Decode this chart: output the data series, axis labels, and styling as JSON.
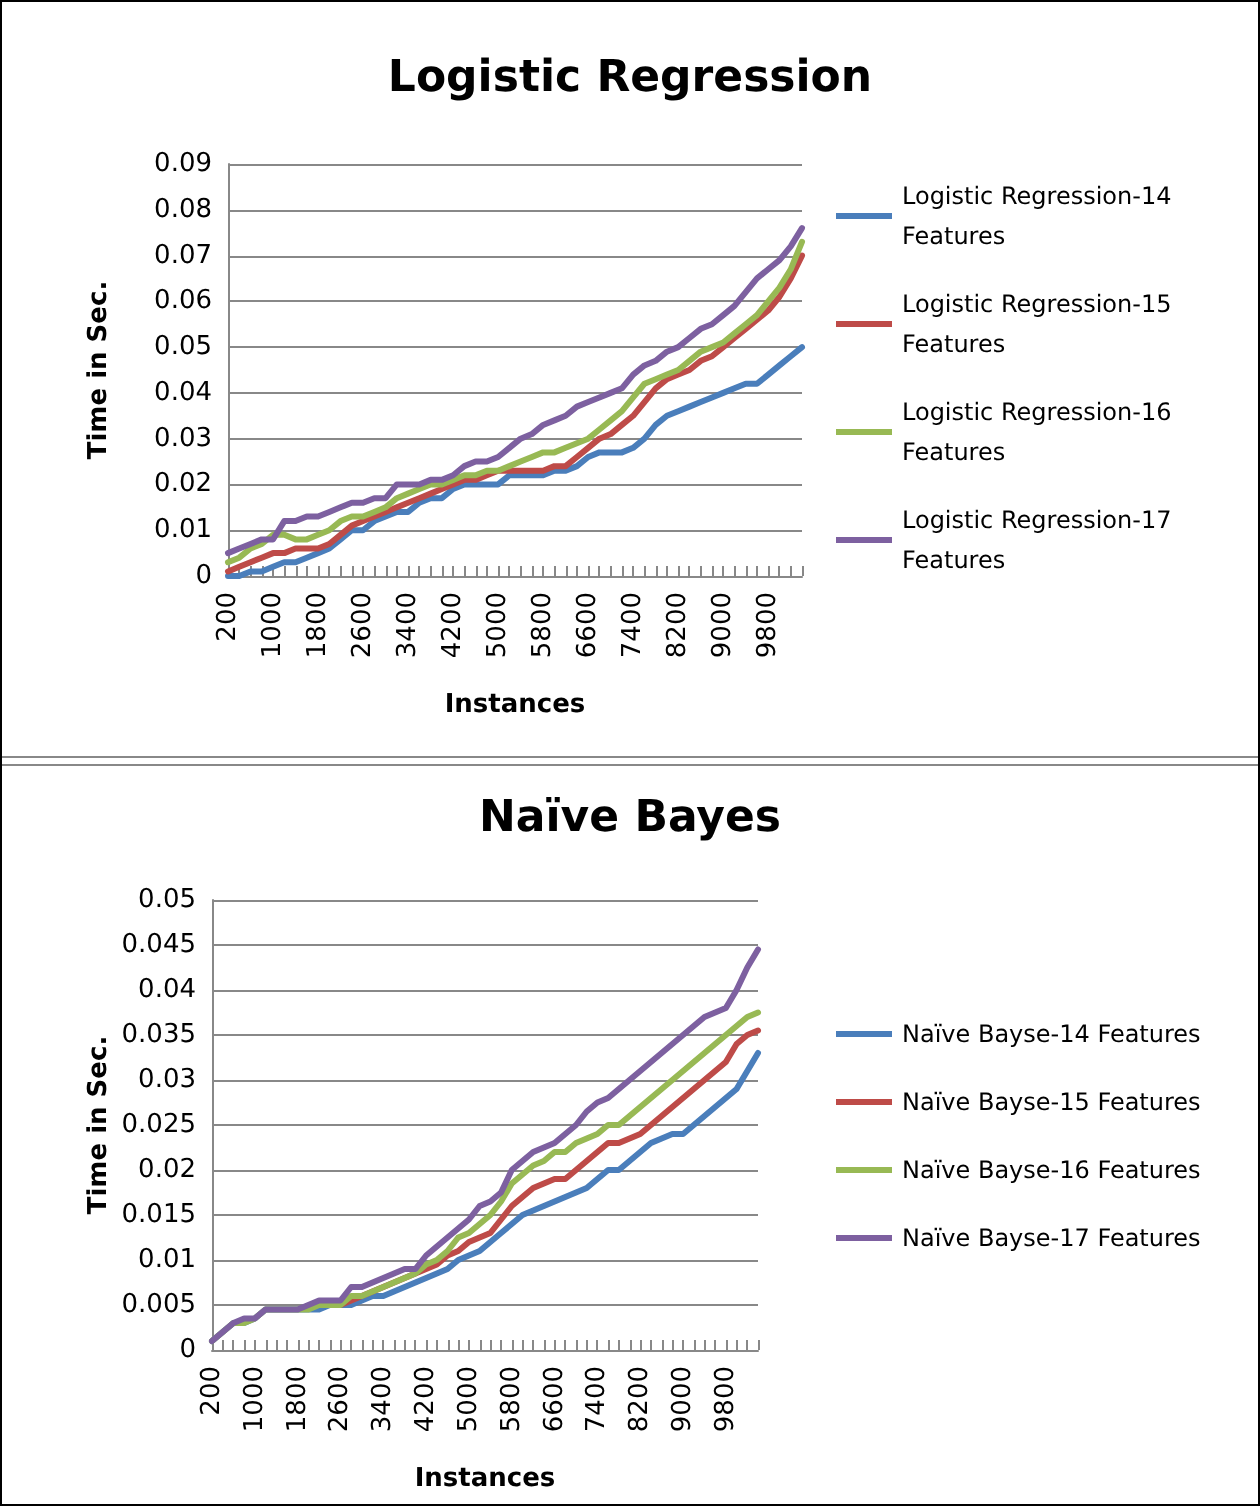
{
  "chart_data": [
    {
      "type": "line",
      "title": "Logistic Regression",
      "xlabel": "Instances",
      "ylabel": "Time in Sec.",
      "categories": [
        "200",
        null,
        null,
        null,
        "1000",
        null,
        null,
        null,
        "1800",
        null,
        null,
        null,
        "2600",
        null,
        null,
        null,
        "3400",
        null,
        null,
        null,
        "4200",
        null,
        null,
        null,
        "5000",
        null,
        null,
        null,
        "5800",
        null,
        null,
        null,
        "6600",
        null,
        null,
        null,
        "7400",
        null,
        null,
        null,
        "8200",
        null,
        null,
        null,
        "9000",
        null,
        null,
        null,
        "9800",
        null,
        null,
        null
      ],
      "series": [
        {
          "name": "Logistic Regression-14 Features",
          "color": "#4a7ebb",
          "values": [
            0,
            0,
            0.001,
            0.001,
            0.002,
            0.003,
            0.003,
            0.004,
            0.005,
            0.006,
            0.008,
            0.01,
            0.01,
            0.012,
            0.013,
            0.014,
            0.014,
            0.016,
            0.017,
            0.017,
            0.019,
            0.02,
            0.02,
            0.02,
            0.02,
            0.022,
            0.022,
            0.022,
            0.022,
            0.023,
            0.023,
            0.024,
            0.026,
            0.027,
            0.027,
            0.027,
            0.028,
            0.03,
            0.033,
            0.035,
            0.036,
            0.037,
            0.038,
            0.039,
            0.04,
            0.041,
            0.042,
            0.042,
            0.044,
            0.046,
            0.048,
            0.05
          ]
        },
        {
          "name": "Logistic Regression-15 Features",
          "color": "#be4b48",
          "values": [
            0.001,
            0.002,
            0.003,
            0.004,
            0.005,
            0.005,
            0.006,
            0.006,
            0.006,
            0.007,
            0.009,
            0.011,
            0.012,
            0.013,
            0.014,
            0.015,
            0.016,
            0.017,
            0.018,
            0.019,
            0.02,
            0.021,
            0.021,
            0.022,
            0.023,
            0.023,
            0.023,
            0.023,
            0.023,
            0.024,
            0.024,
            0.026,
            0.028,
            0.03,
            0.031,
            0.033,
            0.035,
            0.038,
            0.041,
            0.043,
            0.044,
            0.045,
            0.047,
            0.048,
            0.05,
            0.052,
            0.054,
            0.056,
            0.058,
            0.061,
            0.065,
            0.07
          ]
        },
        {
          "name": "Logistic Regression-16 Features",
          "color": "#98b954",
          "values": [
            0.003,
            0.004,
            0.006,
            0.007,
            0.009,
            0.009,
            0.008,
            0.008,
            0.009,
            0.01,
            0.012,
            0.013,
            0.013,
            0.014,
            0.015,
            0.017,
            0.018,
            0.019,
            0.02,
            0.02,
            0.021,
            0.022,
            0.022,
            0.023,
            0.023,
            0.024,
            0.025,
            0.026,
            0.027,
            0.027,
            0.028,
            0.029,
            0.03,
            0.032,
            0.034,
            0.036,
            0.039,
            0.042,
            0.043,
            0.044,
            0.045,
            0.047,
            0.049,
            0.05,
            0.051,
            0.053,
            0.055,
            0.057,
            0.06,
            0.063,
            0.067,
            0.073
          ]
        },
        {
          "name": "Logistic Regression-17 Features",
          "color": "#7d60a0",
          "values": [
            0.005,
            0.006,
            0.007,
            0.008,
            0.008,
            0.012,
            0.012,
            0.013,
            0.013,
            0.014,
            0.015,
            0.016,
            0.016,
            0.017,
            0.017,
            0.02,
            0.02,
            0.02,
            0.021,
            0.021,
            0.022,
            0.024,
            0.025,
            0.025,
            0.026,
            0.028,
            0.03,
            0.031,
            0.033,
            0.034,
            0.035,
            0.037,
            0.038,
            0.039,
            0.04,
            0.041,
            0.044,
            0.046,
            0.047,
            0.049,
            0.05,
            0.052,
            0.054,
            0.055,
            0.057,
            0.059,
            0.062,
            0.065,
            0.067,
            0.069,
            0.072,
            0.076
          ]
        }
      ],
      "ylim": [
        0,
        0.09
      ],
      "yticks": [
        0,
        0.01,
        0.02,
        0.03,
        0.04,
        0.05,
        0.06,
        0.07,
        0.08,
        0.09
      ],
      "grid": "y",
      "legend": "right",
      "marker": "none"
    },
    {
      "type": "line",
      "title": "Naïve Bayes",
      "xlabel": "Instances",
      "ylabel": "Time in Sec.",
      "categories": [
        "200",
        null,
        null,
        null,
        "1000",
        null,
        null,
        null,
        "1800",
        null,
        null,
        null,
        "2600",
        null,
        null,
        null,
        "3400",
        null,
        null,
        null,
        "4200",
        null,
        null,
        null,
        "5000",
        null,
        null,
        null,
        "5800",
        null,
        null,
        null,
        "6600",
        null,
        null,
        null,
        "7400",
        null,
        null,
        null,
        "8200",
        null,
        null,
        null,
        "9000",
        null,
        null,
        null,
        "9800",
        null,
        null,
        null
      ],
      "series": [
        {
          "name": "Naïve Bayse-14 Features",
          "color": "#4a7ebb",
          "values": [
            0.001,
            0.002,
            0.003,
            0.003,
            0.0035,
            0.0045,
            0.0045,
            0.0045,
            0.0045,
            0.0045,
            0.0045,
            0.005,
            0.005,
            0.005,
            0.0055,
            0.006,
            0.006,
            0.0065,
            0.007,
            0.0075,
            0.008,
            0.0085,
            0.009,
            0.01,
            0.0105,
            0.011,
            0.012,
            0.013,
            0.014,
            0.015,
            0.0155,
            0.016,
            0.0165,
            0.017,
            0.0175,
            0.018,
            0.019,
            0.02,
            0.02,
            0.021,
            0.022,
            0.023,
            0.0235,
            0.024,
            0.024,
            0.025,
            0.026,
            0.027,
            0.028,
            0.029,
            0.031,
            0.033
          ]
        },
        {
          "name": "Naïve Bayse-15 Features",
          "color": "#be4b48",
          "values": [
            null,
            null,
            null,
            null,
            null,
            null,
            null,
            null,
            null,
            null,
            null,
            0.005,
            0.005,
            0.0055,
            0.006,
            0.0065,
            0.007,
            0.0075,
            0.008,
            0.0085,
            0.009,
            0.0095,
            0.0105,
            0.011,
            0.012,
            0.0125,
            0.013,
            0.0145,
            0.016,
            0.017,
            0.018,
            0.0185,
            0.019,
            0.019,
            0.02,
            0.021,
            0.022,
            0.023,
            0.023,
            0.0235,
            0.024,
            0.025,
            0.026,
            0.027,
            0.028,
            0.029,
            0.03,
            0.031,
            0.032,
            0.034,
            0.035,
            0.0355
          ]
        },
        {
          "name": "Naïve Bayse-16 Features",
          "color": "#98b954",
          "values": [
            0.001,
            0.002,
            0.003,
            0.003,
            0.0035,
            0.0045,
            0.0045,
            0.0045,
            0.0045,
            0.0045,
            0.005,
            0.005,
            0.005,
            0.006,
            0.006,
            0.0065,
            0.007,
            0.0075,
            0.008,
            0.0085,
            0.0095,
            0.01,
            0.011,
            0.0125,
            0.013,
            0.014,
            0.015,
            0.0165,
            0.0185,
            0.0195,
            0.0205,
            0.021,
            0.022,
            0.022,
            0.023,
            0.0235,
            0.024,
            0.025,
            0.025,
            0.026,
            0.027,
            0.028,
            0.029,
            0.03,
            0.031,
            0.032,
            0.033,
            0.034,
            0.035,
            0.036,
            0.037,
            0.0375
          ]
        },
        {
          "name": "Naïve Bayse-17 Features",
          "color": "#7d60a0",
          "values": [
            0.001,
            0.002,
            0.003,
            0.0035,
            0.0035,
            0.0045,
            0.0045,
            0.0045,
            0.0045,
            0.005,
            0.0055,
            0.0055,
            0.0055,
            0.007,
            0.007,
            0.0075,
            0.008,
            0.0085,
            0.009,
            0.009,
            0.0105,
            0.0115,
            0.0125,
            0.0135,
            0.0145,
            0.016,
            0.0165,
            0.0175,
            0.02,
            0.021,
            0.022,
            0.0225,
            0.023,
            0.024,
            0.025,
            0.0265,
            0.0275,
            0.028,
            0.029,
            0.03,
            0.031,
            0.032,
            0.033,
            0.034,
            0.035,
            0.036,
            0.037,
            0.0375,
            0.038,
            0.04,
            0.0425,
            0.0445
          ]
        }
      ],
      "ylim": [
        0,
        0.05
      ],
      "yticks": [
        0,
        0.005,
        0.01,
        0.015,
        0.02,
        0.025,
        0.03,
        0.035,
        0.04,
        0.045,
        0.05
      ],
      "grid": "y",
      "legend": "right",
      "marker": "none"
    }
  ]
}
